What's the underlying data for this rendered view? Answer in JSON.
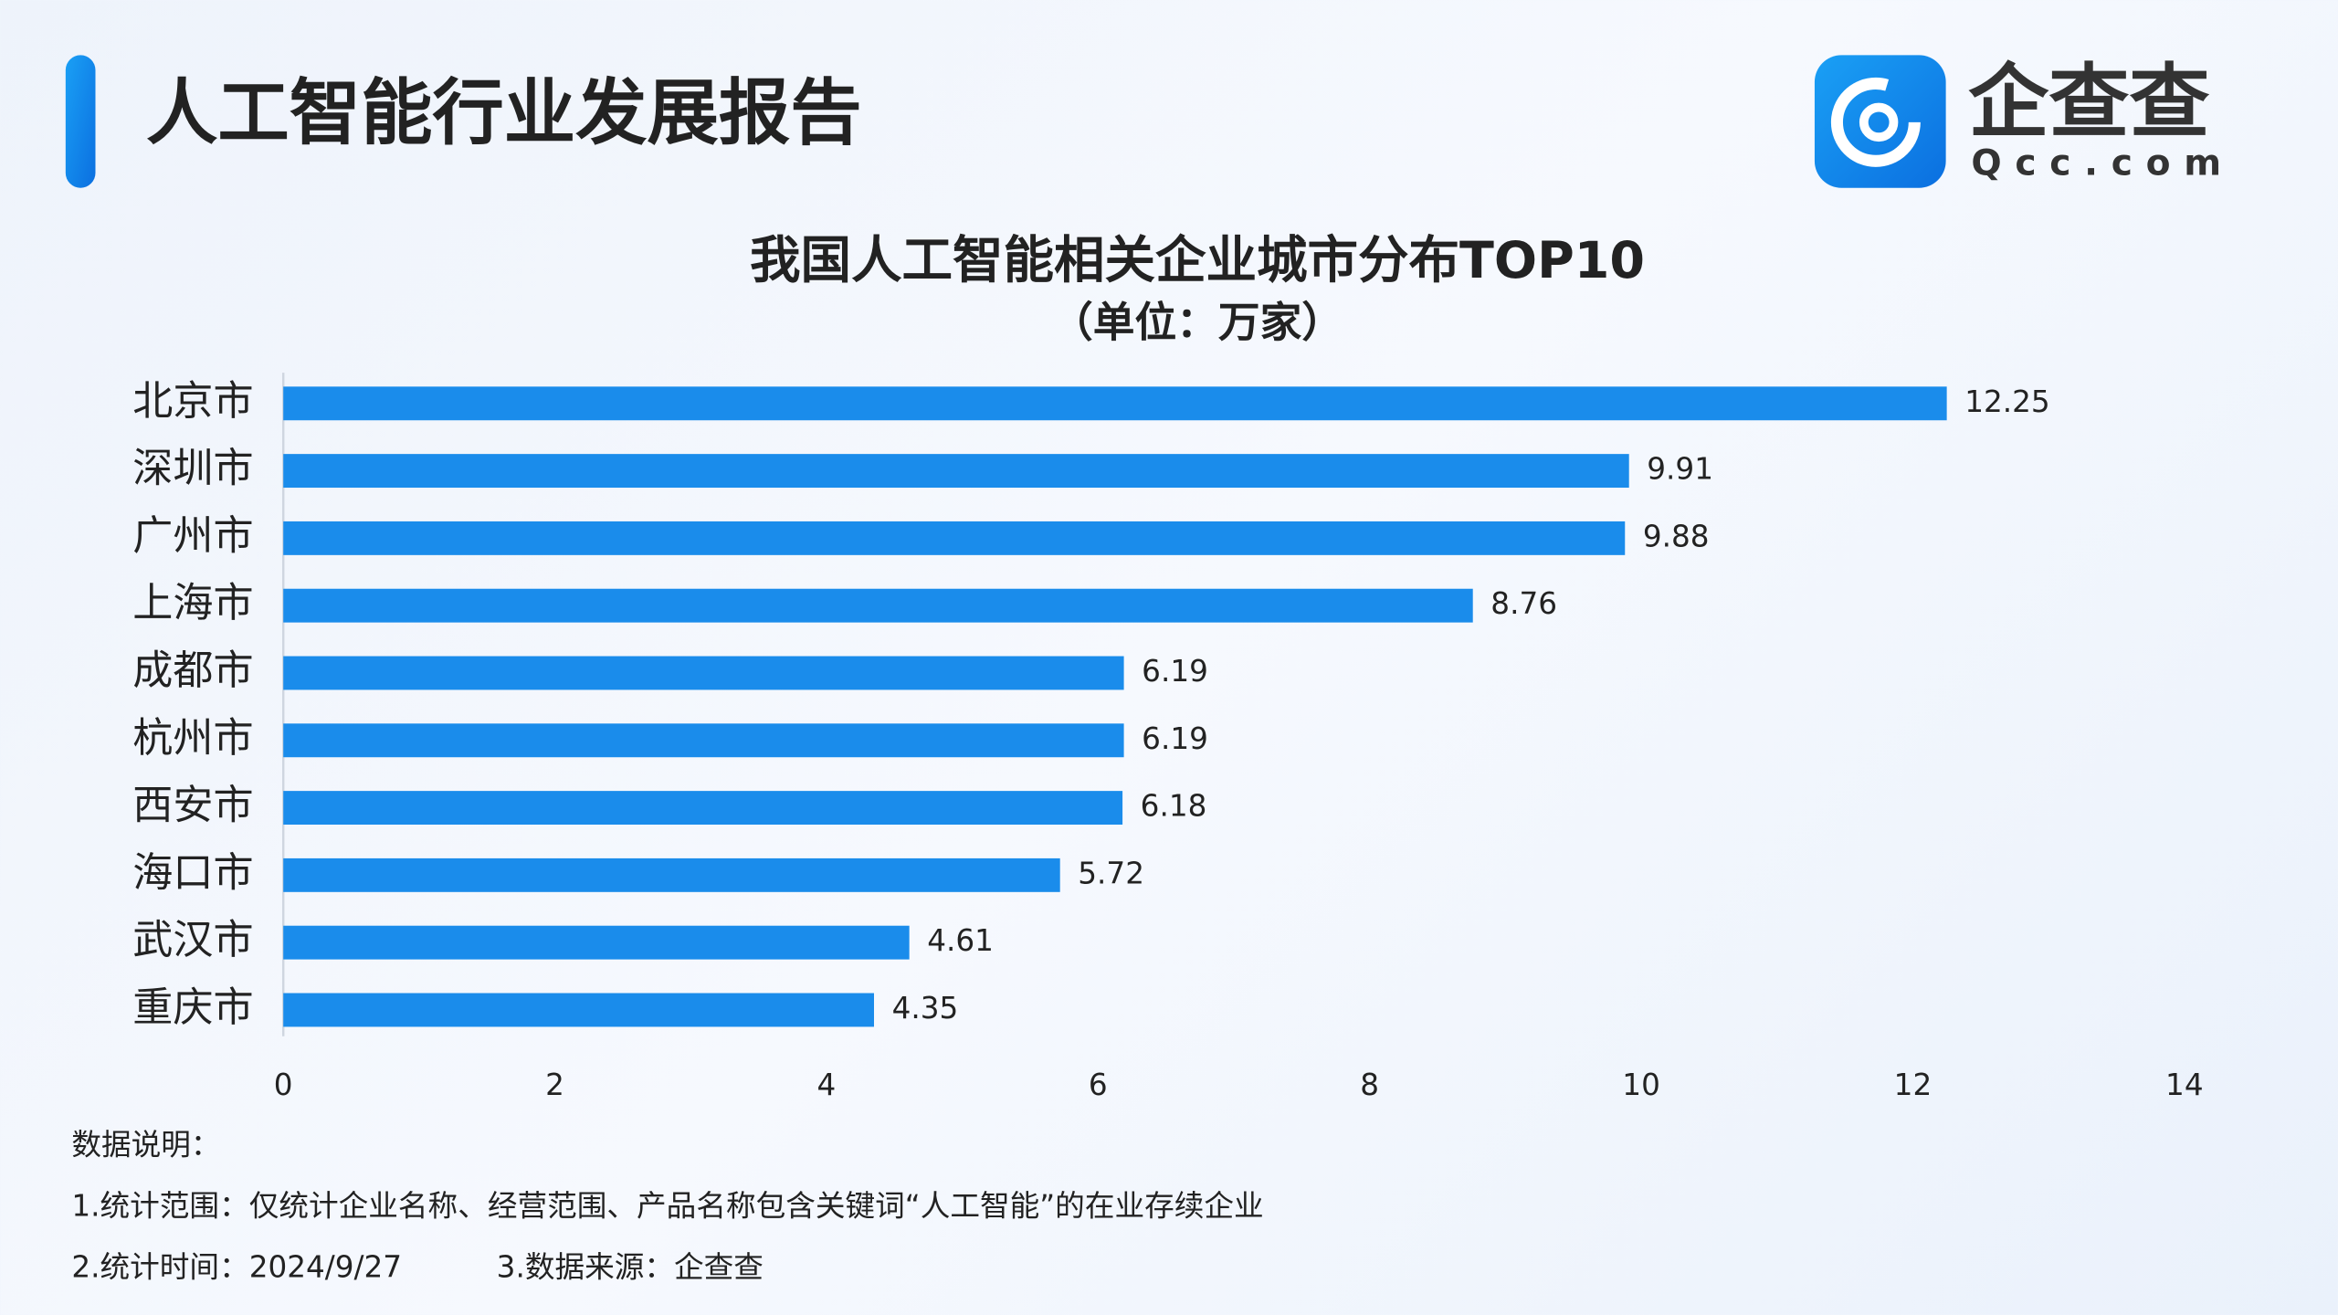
{
  "header": {
    "title": "人工智能行业发展报告",
    "logo_text": "企查查",
    "logo_subtext": "Qcc.com"
  },
  "chart_data": {
    "type": "bar",
    "orientation": "horizontal",
    "title": "我国人工智能相关企业城市分布TOP10",
    "subtitle": "（单位：万家）",
    "categories": [
      "北京市",
      "深圳市",
      "广州市",
      "上海市",
      "成都市",
      "杭州市",
      "西安市",
      "海口市",
      "武汉市",
      "重庆市"
    ],
    "values": [
      12.25,
      9.91,
      9.88,
      8.76,
      6.19,
      6.19,
      6.18,
      5.72,
      4.61,
      4.35
    ],
    "color": "#1a8ceb",
    "xlim": [
      0,
      14
    ],
    "xticks": [
      0,
      2,
      4,
      6,
      8,
      10,
      12,
      14
    ],
    "grid": false
  },
  "notes": {
    "heading": "数据说明：",
    "scope": "1.统计范围：仅统计企业名称、经营范围、产品名称包含关键词“人工智能”的在业存续企业",
    "time": "2.统计时间：2024/9/27",
    "source": "3.数据来源：企查查"
  }
}
